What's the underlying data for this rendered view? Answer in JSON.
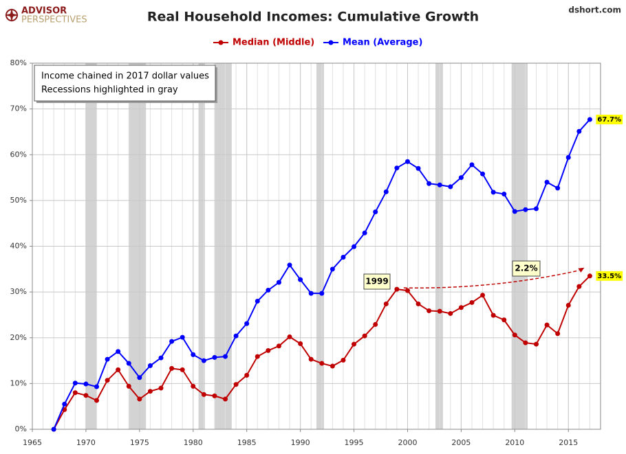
{
  "chart_data": {
    "type": "line",
    "title": "Real Household Incomes: Cumulative Growth",
    "logo": {
      "line1": "ADVISOR",
      "line2": "PERSPECTIVES"
    },
    "source": "dshort.com",
    "annotations": [
      "Income chained in 2017 dollar values",
      "Recessions highlighted in gray"
    ],
    "callouts": {
      "start": "1999",
      "change": "2.2%"
    },
    "x": [
      1967,
      1968,
      1969,
      1970,
      1971,
      1972,
      1973,
      1974,
      1975,
      1976,
      1977,
      1978,
      1979,
      1980,
      1981,
      1982,
      1983,
      1984,
      1985,
      1986,
      1987,
      1988,
      1989,
      1990,
      1991,
      1992,
      1993,
      1994,
      1995,
      1996,
      1997,
      1998,
      1999,
      2000,
      2001,
      2002,
      2003,
      2004,
      2005,
      2006,
      2007,
      2008,
      2009,
      2010,
      2011,
      2012,
      2013,
      2014,
      2015,
      2016,
      2017
    ],
    "series": [
      {
        "name": "Median (Middle)",
        "color": "#c00000",
        "values": [
          0,
          4.3,
          8.0,
          7.4,
          6.3,
          10.7,
          13.0,
          9.4,
          6.6,
          8.3,
          9.0,
          13.3,
          13.0,
          9.4,
          7.6,
          7.3,
          6.6,
          9.8,
          11.8,
          15.9,
          17.2,
          18.2,
          20.2,
          18.7,
          15.3,
          14.4,
          13.8,
          15.1,
          18.6,
          20.4,
          22.9,
          27.4,
          30.6,
          30.3,
          27.4,
          25.9,
          25.8,
          25.3,
          26.6,
          27.7,
          29.3,
          24.9,
          23.9,
          20.6,
          18.9,
          18.6,
          22.8,
          20.9,
          27.1,
          31.2,
          33.5
        ],
        "value_labels": [
          null,
          null,
          null,
          null,
          null,
          null,
          null,
          null,
          null,
          null,
          null,
          null,
          null,
          null,
          null,
          null,
          null,
          null,
          null,
          null,
          null,
          null,
          null,
          null,
          null,
          null,
          null,
          null,
          null,
          null,
          null,
          null,
          null,
          null,
          null,
          null,
          null,
          null,
          null,
          null,
          null,
          null,
          null,
          null,
          null,
          null,
          null,
          null,
          null,
          null,
          "33.5%"
        ]
      },
      {
        "name": "Mean (Average)",
        "color": "#0000ff",
        "values": [
          0,
          5.5,
          10.1,
          9.9,
          9.3,
          15.3,
          17.0,
          14.4,
          11.3,
          13.9,
          15.6,
          19.2,
          20.1,
          16.3,
          15.0,
          15.7,
          15.9,
          20.4,
          23.1,
          28.0,
          30.4,
          32.1,
          35.9,
          32.7,
          29.7,
          29.7,
          35.0,
          37.6,
          39.9,
          42.9,
          47.5,
          51.9,
          57.1,
          58.5,
          57.0,
          53.7,
          53.4,
          53.0,
          55.0,
          57.8,
          55.8,
          51.8,
          51.4,
          47.6,
          48.0,
          48.2,
          54.0,
          52.7,
          59.4,
          65.1,
          67.7
        ],
        "value_labels": [
          null,
          null,
          null,
          null,
          null,
          null,
          null,
          null,
          null,
          null,
          null,
          null,
          null,
          null,
          null,
          null,
          null,
          null,
          null,
          null,
          null,
          null,
          null,
          null,
          null,
          null,
          null,
          null,
          null,
          null,
          null,
          null,
          null,
          null,
          null,
          null,
          null,
          null,
          null,
          null,
          null,
          null,
          null,
          null,
          null,
          null,
          null,
          null,
          null,
          null,
          "67.7%"
        ]
      }
    ],
    "recessions": [
      [
        1970.0,
        1971.0
      ],
      [
        1974.0,
        1975.6
      ],
      [
        1980.5,
        1981.1
      ],
      [
        1982.0,
        1983.6
      ],
      [
        1991.5,
        1992.2
      ],
      [
        2002.6,
        2003.3
      ],
      [
        2009.7,
        2011.2
      ]
    ],
    "xlim": [
      1965,
      2018
    ],
    "xticks": [
      1965,
      1970,
      1975,
      1980,
      1985,
      1990,
      1995,
      2000,
      2005,
      2010,
      2015
    ],
    "ylim": [
      0,
      80
    ],
    "yticks": [
      {
        "value": 0,
        "label": "0%"
      },
      {
        "value": 10,
        "label": "10%"
      },
      {
        "value": 20,
        "label": "20%"
      },
      {
        "value": 30,
        "label": "30%"
      },
      {
        "value": 40,
        "label": "40%"
      },
      {
        "value": 50,
        "label": "50%"
      },
      {
        "value": 60,
        "label": "60%"
      },
      {
        "value": 70,
        "label": "70%"
      },
      {
        "value": 80,
        "label": "80%"
      }
    ],
    "grid": true,
    "legend": "top"
  }
}
